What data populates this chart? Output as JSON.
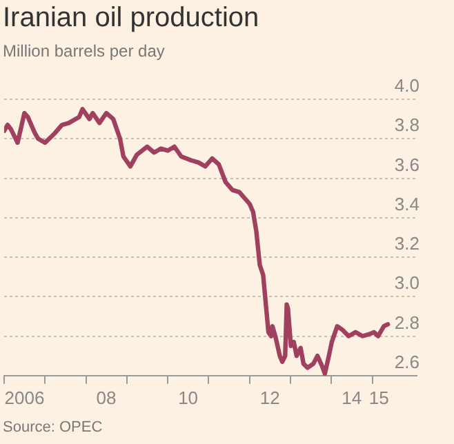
{
  "chart_data": {
    "type": "line",
    "title": "Iranian oil production",
    "subtitle": "Million barrels per day",
    "annotations": [
      "Source: OPEC"
    ],
    "x": [
      "2006-01",
      "2006-02",
      "2006-03",
      "2006-05",
      "2006-07",
      "2006-08",
      "2006-10",
      "2006-11",
      "2007-01",
      "2007-04",
      "2007-06",
      "2007-08",
      "2007-11",
      "2007-12",
      "2008-02",
      "2008-03",
      "2008-05",
      "2008-07",
      "2008-09",
      "2008-11",
      "2008-12",
      "2009-02",
      "2009-04",
      "2009-07",
      "2009-09",
      "2009-11",
      "2010-01",
      "2010-03",
      "2010-05",
      "2010-08",
      "2010-10",
      "2010-12",
      "2011-02",
      "2011-04",
      "2011-06",
      "2011-08",
      "2011-10",
      "2012-01",
      "2012-02",
      "2012-03",
      "2012-04",
      "2012-05",
      "2012-06-17",
      "2012-07-12",
      "2012-07-23",
      "2012-08-18",
      "2012-09-27",
      "2012-10-19",
      "2012-11-14",
      "2012-11-28",
      "2012-12-09",
      "2013-01-04",
      "2013-01-30",
      "2013-02-24",
      "2013-04-01",
      "2013-04-27",
      "2013-06-02",
      "2013-07-23",
      "2013-08-29",
      "2013-10-08",
      "2013-11-03",
      "2013-12-09",
      "2014-01-04",
      "2014-02-21",
      "2014-04-13",
      "2014-06-03",
      "2014-08-04",
      "2014-10-05",
      "2014-12-06",
      "2015-01-15",
      "2015-02-21",
      "2015-04-13",
      "2015-05-19"
    ],
    "series": [
      {
        "color": "#a0405f",
        "values": [
          3.84,
          3.87,
          3.85,
          3.78,
          3.93,
          3.91,
          3.83,
          3.8,
          3.78,
          3.83,
          3.87,
          3.88,
          3.91,
          3.95,
          3.9,
          3.93,
          3.88,
          3.93,
          3.9,
          3.8,
          3.71,
          3.66,
          3.72,
          3.76,
          3.73,
          3.75,
          3.74,
          3.76,
          3.71,
          3.69,
          3.68,
          3.66,
          3.7,
          3.67,
          3.58,
          3.54,
          3.53,
          3.47,
          3.43,
          3.33,
          3.16,
          3.11,
          2.82,
          2.8,
          2.85,
          2.8,
          2.7,
          2.67,
          2.7,
          2.96,
          2.94,
          2.75,
          2.77,
          2.7,
          2.74,
          2.66,
          2.64,
          2.66,
          2.7,
          2.65,
          2.61,
          2.7,
          2.77,
          2.85,
          2.83,
          2.8,
          2.82,
          2.8,
          2.81,
          2.82,
          2.8,
          2.85,
          2.86
        ]
      }
    ],
    "xlim": [
      "2006-01",
      "2016-02"
    ],
    "xticks": [
      {
        "value": "2006-01",
        "label": null
      },
      {
        "value": "2006-07",
        "label": "2006"
      },
      {
        "value": "2007-01",
        "label": null
      },
      {
        "value": "2008-01",
        "label": null
      },
      {
        "value": "2008-07",
        "label": "08"
      },
      {
        "value": "2009-01",
        "label": null
      },
      {
        "value": "2010-01",
        "label": null
      },
      {
        "value": "2010-07",
        "label": "10"
      },
      {
        "value": "2011-01",
        "label": null
      },
      {
        "value": "2012-01",
        "label": null
      },
      {
        "value": "2012-07",
        "label": "12"
      },
      {
        "value": "2013-01",
        "label": null
      },
      {
        "value": "2014-01",
        "label": null
      },
      {
        "value": "2014-07",
        "label": "14"
      },
      {
        "value": "2015-01",
        "label": null
      },
      {
        "value": "2015-03",
        "label": "15"
      }
    ],
    "ylim": [
      2.6,
      4.0
    ],
    "yticks": [
      {
        "value": 2.6,
        "label": "2.6"
      },
      {
        "value": 2.8,
        "label": "2.8"
      },
      {
        "value": 3.0,
        "label": "3.0"
      },
      {
        "value": 3.2,
        "label": "3.2"
      },
      {
        "value": 3.4,
        "label": "3.4"
      },
      {
        "value": 3.6,
        "label": "3.6"
      },
      {
        "value": 3.8,
        "label": "3.8"
      },
      {
        "value": 4.0,
        "label": "4.0"
      }
    ],
    "grid": "y"
  }
}
